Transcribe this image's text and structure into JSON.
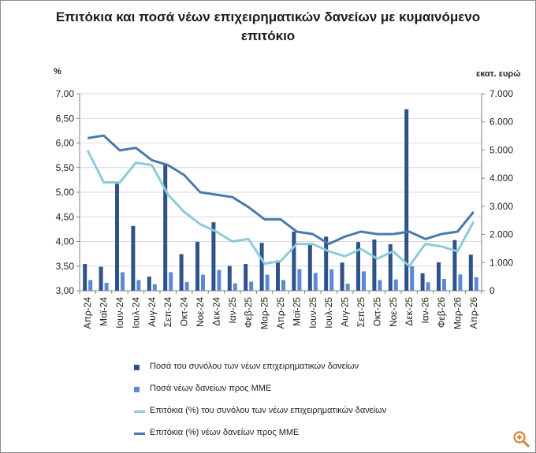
{
  "title": "Επιτόκια και ποσά νέων επιχειρηματικών δανείων με κυμαινόμενο επιτόκιο",
  "chart_data": {
    "type": "bar",
    "title": "Επιτόκια και ποσά νέων επιχειρηματικών δανείων με κυμαινόμενο επιτόκιο",
    "categories": [
      "Απρ-24",
      "Μαϊ-24",
      "Ιουν-24",
      "Ιουλ-24",
      "Αυγ-24",
      "Σεπ-24",
      "Οκτ-24",
      "Νοε-24",
      "Δεκ-24",
      "Ιαν-25",
      "Φεβ-25",
      "Μαρ-25",
      "Απρ-25",
      "Μαϊ-25",
      "Ιουν-25",
      "Ιουλ-25",
      "Αυγ-25",
      "Σεπ-25",
      "Οκτ-25",
      "Νοε-25",
      "Δεκ-25",
      "Ιαν-26",
      "Φεβ-26",
      "Μαρ-26",
      "Απρ-26"
    ],
    "left_axis": {
      "unit": "%",
      "ylim": [
        3.0,
        7.0
      ],
      "ticks": [
        "3,00",
        "3,50",
        "4,00",
        "4,50",
        "5,00",
        "5,50",
        "6,00",
        "6,50",
        "7,00"
      ]
    },
    "right_axis": {
      "unit": "εκατ. ευρώ",
      "ylim": [
        0,
        7000
      ],
      "ticks": [
        "0",
        "1.000",
        "2.000",
        "3.000",
        "4.000",
        "5.000",
        "6.000",
        "7.000"
      ]
    },
    "series": [
      {
        "name": "Ποσά του συνόλου των νέων επιχειρηματικών δανείων",
        "type": "bar",
        "axis": "right",
        "color": "#2e5289",
        "values": [
          950,
          850,
          3800,
          2300,
          500,
          4500,
          1300,
          1740,
          2430,
          880,
          950,
          1700,
          1080,
          2100,
          1660,
          1920,
          1000,
          1730,
          1820,
          1650,
          6450,
          620,
          1010,
          1800,
          1280
        ]
      },
      {
        "name": "Ποσά νέων δανείων προς ΜΜΕ",
        "type": "bar",
        "axis": "right",
        "color": "#5b8ad4",
        "values": [
          380,
          280,
          660,
          380,
          230,
          660,
          310,
          570,
          740,
          260,
          320,
          570,
          380,
          770,
          630,
          760,
          250,
          690,
          380,
          400,
          870,
          300,
          420,
          580,
          480
        ]
      },
      {
        "name": "Επιτόκια (%) του συνόλου των νέων επιχειρηματικών δανείων",
        "type": "line",
        "axis": "left",
        "color": "#8ccbd9",
        "values": [
          5.85,
          5.2,
          5.2,
          5.6,
          5.55,
          4.95,
          4.6,
          4.35,
          4.2,
          4.0,
          4.05,
          3.55,
          3.6,
          3.95,
          3.95,
          3.8,
          3.7,
          3.85,
          3.65,
          3.8,
          3.5,
          3.95,
          3.9,
          3.8,
          4.4
        ]
      },
      {
        "name": "Επιτόκια (%) νέων δανείων προς ΜΜΕ",
        "type": "line",
        "axis": "left",
        "color": "#4a79b0",
        "values": [
          6.1,
          6.15,
          5.85,
          5.9,
          5.65,
          5.55,
          5.35,
          5.0,
          4.95,
          4.9,
          4.7,
          4.45,
          4.45,
          4.2,
          4.15,
          3.95,
          4.1,
          4.2,
          4.15,
          4.15,
          4.2,
          4.05,
          4.15,
          4.2,
          4.6
        ]
      }
    ],
    "legend": "bottom"
  },
  "icons": {
    "zoom": "zoom-icon",
    "zoom_color": "#d9822b"
  }
}
